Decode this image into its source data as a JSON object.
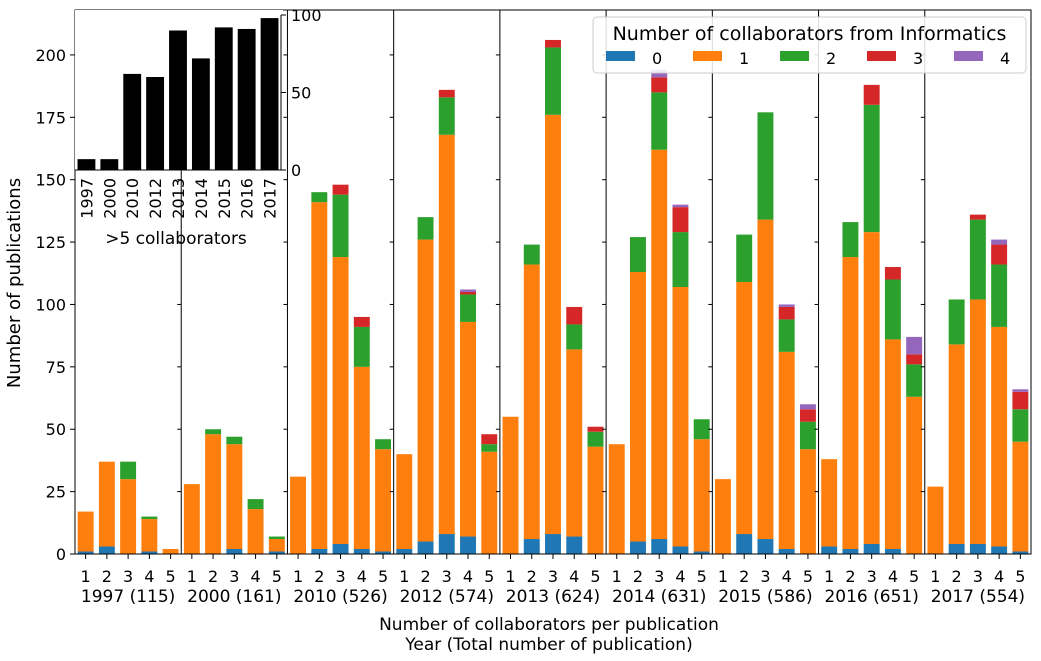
{
  "chart_data": {
    "type": "bar",
    "stacked": true,
    "ylabel": "Number of publications",
    "xlabel_line1": "Number of collaborators per publication",
    "xlabel_line2": "Year (Total number of publication)",
    "ylim": [
      0,
      218
    ],
    "yticks": [
      0,
      25,
      50,
      75,
      100,
      125,
      150,
      175,
      200
    ],
    "categories": [
      "1",
      "2",
      "3",
      "4",
      "5"
    ],
    "legend": {
      "title": "Number of collaborators from Informatics",
      "placement": "top-right",
      "entries": [
        "0",
        "1",
        "2",
        "3",
        "4"
      ]
    },
    "series_colors": [
      "#1f77b4",
      "#ff7f0e",
      "#2ca02c",
      "#d62728",
      "#9467bd"
    ],
    "groups": [
      {
        "label": "1997 (115)",
        "stacks": [
          [
            1,
            16,
            0,
            0,
            0
          ],
          [
            3,
            34,
            0,
            0,
            0
          ],
          [
            0,
            30,
            7,
            0,
            0
          ],
          [
            1,
            13,
            1,
            0,
            0
          ],
          [
            0,
            2,
            0,
            0,
            0
          ]
        ]
      },
      {
        "label": "2000 (161)",
        "stacks": [
          [
            0,
            28,
            0,
            0,
            0
          ],
          [
            0,
            48,
            2,
            0,
            0
          ],
          [
            2,
            42,
            3,
            0,
            0
          ],
          [
            0,
            18,
            4,
            0,
            0
          ],
          [
            1,
            5,
            1,
            0,
            0
          ]
        ]
      },
      {
        "label": "2010 (526)",
        "stacks": [
          [
            0,
            31,
            0,
            0,
            0
          ],
          [
            2,
            139,
            4,
            0,
            0
          ],
          [
            4,
            115,
            25,
            4,
            0
          ],
          [
            2,
            73,
            16,
            4,
            0
          ],
          [
            1,
            41,
            4,
            0,
            0
          ]
        ]
      },
      {
        "label": "2012 (574)",
        "stacks": [
          [
            2,
            38,
            0,
            0,
            0
          ],
          [
            5,
            121,
            9,
            0,
            0
          ],
          [
            8,
            160,
            15,
            3,
            0
          ],
          [
            7,
            86,
            11,
            1,
            1
          ],
          [
            0,
            41,
            3,
            4,
            0
          ]
        ]
      },
      {
        "label": "2013 (624)",
        "stacks": [
          [
            0,
            55,
            0,
            0,
            0
          ],
          [
            6,
            110,
            8,
            0,
            0
          ],
          [
            8,
            168,
            27,
            3,
            0
          ],
          [
            7,
            75,
            10,
            7,
            0
          ],
          [
            0,
            43,
            6,
            2,
            0
          ]
        ]
      },
      {
        "label": "2014 (631)",
        "stacks": [
          [
            0,
            44,
            0,
            0,
            0
          ],
          [
            5,
            108,
            14,
            0,
            0
          ],
          [
            6,
            156,
            23,
            6,
            3
          ],
          [
            3,
            104,
            22,
            10,
            1
          ],
          [
            1,
            45,
            8,
            0,
            0
          ]
        ]
      },
      {
        "label": "2015 (586)",
        "stacks": [
          [
            0,
            30,
            0,
            0,
            0
          ],
          [
            8,
            101,
            19,
            0,
            0
          ],
          [
            6,
            128,
            43,
            0,
            0
          ],
          [
            2,
            79,
            13,
            5,
            1
          ],
          [
            0,
            42,
            11,
            5,
            2
          ]
        ]
      },
      {
        "label": "2016 (651)",
        "stacks": [
          [
            3,
            35,
            0,
            0,
            0
          ],
          [
            2,
            117,
            14,
            0,
            0
          ],
          [
            4,
            125,
            51,
            8,
            0
          ],
          [
            2,
            84,
            24,
            5,
            0
          ],
          [
            0,
            63,
            13,
            4,
            7
          ]
        ]
      },
      {
        "label": "2017 (554)",
        "stacks": [
          [
            0,
            27,
            0,
            0,
            0
          ],
          [
            4,
            80,
            18,
            0,
            0
          ],
          [
            4,
            98,
            32,
            2,
            0
          ],
          [
            3,
            88,
            25,
            8,
            2
          ],
          [
            1,
            44,
            13,
            7,
            1
          ]
        ]
      }
    ],
    "inset": {
      "type": "bar",
      "title": ">5 collaborators",
      "categories": [
        "1997",
        "2000",
        "2010",
        "2012",
        "2013",
        "2014",
        "2015",
        "2016",
        "2017"
      ],
      "values": [
        7,
        7,
        62,
        60,
        90,
        72,
        92,
        91,
        98
      ],
      "ylim": [
        0,
        100
      ],
      "yticks": [
        0,
        50,
        100
      ],
      "color": "#000000"
    }
  }
}
